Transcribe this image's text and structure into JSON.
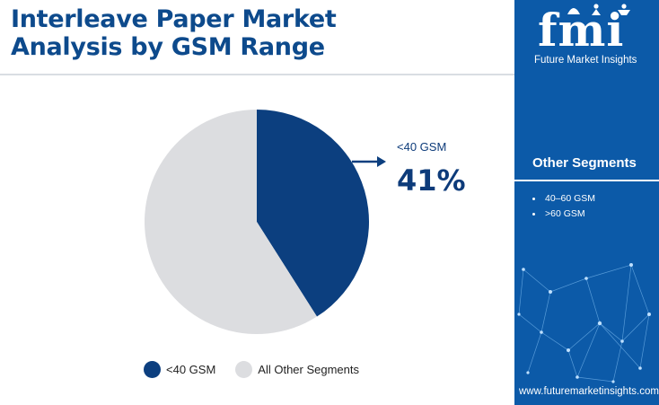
{
  "title": {
    "line1": "Interleave Paper Market",
    "line2": "Analysis by GSM Range"
  },
  "chart_data": {
    "type": "pie",
    "title": "Interleave Paper Market Analysis by GSM Range",
    "slices": [
      {
        "label": "<40 GSM",
        "value": 41,
        "color": "#0c3f7f"
      },
      {
        "label": "All Other Segments",
        "value": 59,
        "color": "#dcdde0"
      }
    ],
    "callout": {
      "label": "<40 GSM",
      "value": "41%"
    },
    "legend_position": "bottom"
  },
  "legend": {
    "items": [
      {
        "label": "<40 GSM",
        "color": "#0c3f7f"
      },
      {
        "label": "All Other Segments",
        "color": "#dcdde0"
      }
    ]
  },
  "sidebar": {
    "background": "#0c5aa8",
    "logo_text": "fmi",
    "logo_subtitle": "Future Market Insights",
    "other_segments_title": "Other Segments",
    "other_segments": [
      "40–60 GSM",
      ">60 GSM"
    ],
    "url": "www.futuremarketinsights.com"
  }
}
